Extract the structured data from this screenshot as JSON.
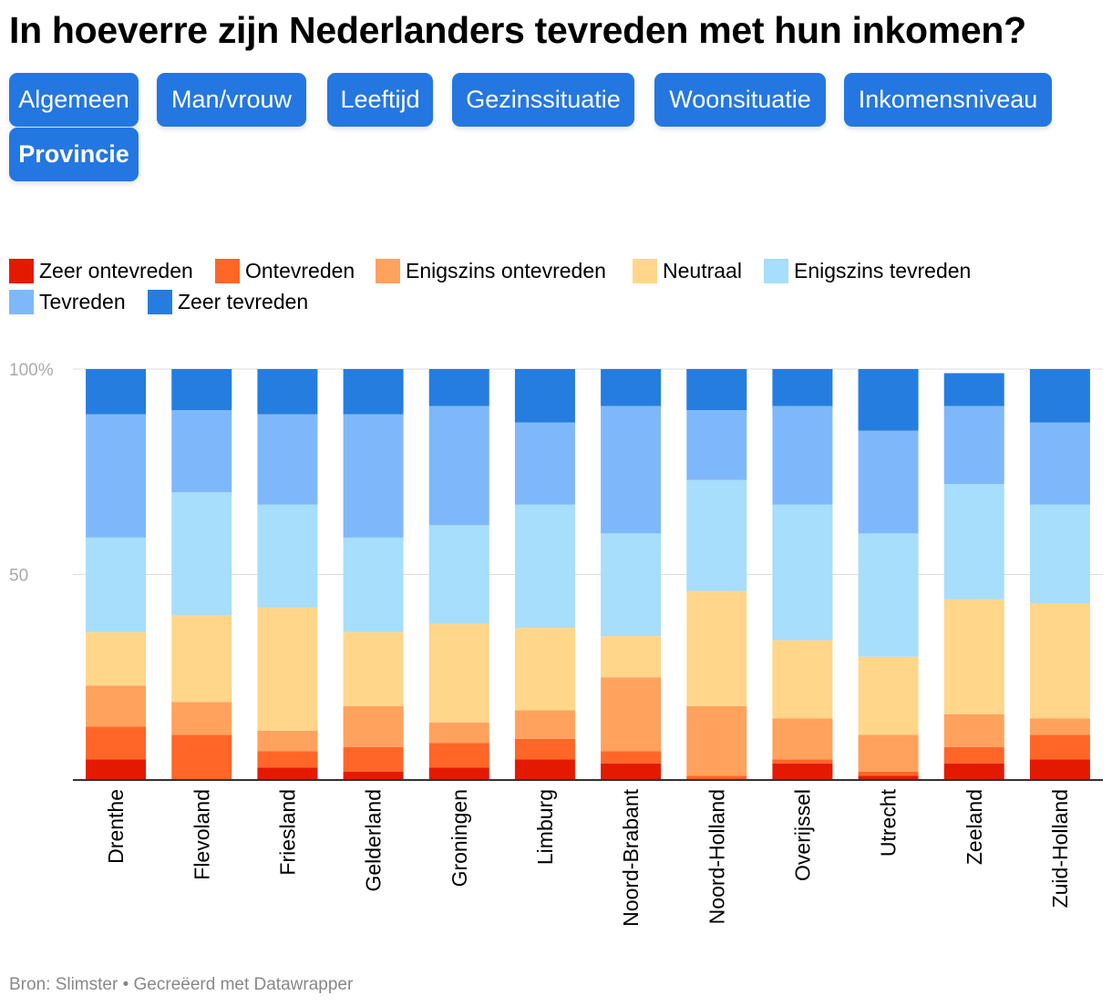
{
  "title": "In hoeverre zijn Nederlanders tevreden met hun inkomen?",
  "tabs": [
    {
      "label": "Algemeen",
      "active": false
    },
    {
      "label": "Man/vrouw",
      "active": false
    },
    {
      "label": "Leeftijd",
      "active": false
    },
    {
      "label": "Gezinssituatie",
      "active": false
    },
    {
      "label": "Woonsituatie",
      "active": false
    },
    {
      "label": "Inkomensniveau",
      "active": false
    },
    {
      "label": "Provincie",
      "active": true
    }
  ],
  "source": "Bron: Slimster • Gecreëerd met Datawrapper",
  "chart_data": {
    "type": "bar",
    "stacked": true,
    "orientation": "vertical",
    "ylim": [
      0,
      100
    ],
    "yticks": [
      {
        "value": 100,
        "label": "100%"
      },
      {
        "value": 50,
        "label": "50"
      }
    ],
    "categories": [
      "Drenthe",
      "Flevoland",
      "Friesland",
      "Gelderland",
      "Groningen",
      "Limburg",
      "Noord-Brabant",
      "Noord-Holland",
      "Overijssel",
      "Utrecht",
      "Zeeland",
      "Zuid-Holland"
    ],
    "series": [
      {
        "name": "Zeer ontevreden",
        "color": "#e31a00",
        "values": [
          5,
          0,
          3,
          2,
          3,
          5,
          4,
          0,
          4,
          1,
          4,
          5
        ]
      },
      {
        "name": "Ontevreden",
        "color": "#ff6628",
        "values": [
          8,
          11,
          4,
          6,
          6,
          5,
          3,
          1,
          1,
          1,
          4,
          6
        ]
      },
      {
        "name": "Enigszins ontevreden",
        "color": "#ffa25e",
        "values": [
          10,
          8,
          5,
          10,
          5,
          7,
          18,
          17,
          10,
          9,
          8,
          4
        ]
      },
      {
        "name": "Neutraal",
        "color": "#ffd68a",
        "values": [
          13,
          21,
          30,
          18,
          24,
          20,
          10,
          28,
          19,
          19,
          28,
          28
        ]
      },
      {
        "name": "Enigszins tevreden",
        "color": "#a6defc",
        "values": [
          23,
          30,
          25,
          23,
          24,
          30,
          25,
          27,
          33,
          30,
          28,
          24
        ]
      },
      {
        "name": "Tevreden",
        "color": "#7fb8fa",
        "values": [
          30,
          20,
          22,
          30,
          29,
          20,
          31,
          17,
          24,
          25,
          19,
          20
        ]
      },
      {
        "name": "Zeer tevreden",
        "color": "#257de0",
        "values": [
          11,
          10,
          11,
          11,
          9,
          13,
          9,
          10,
          9,
          15,
          8,
          13
        ]
      }
    ]
  }
}
